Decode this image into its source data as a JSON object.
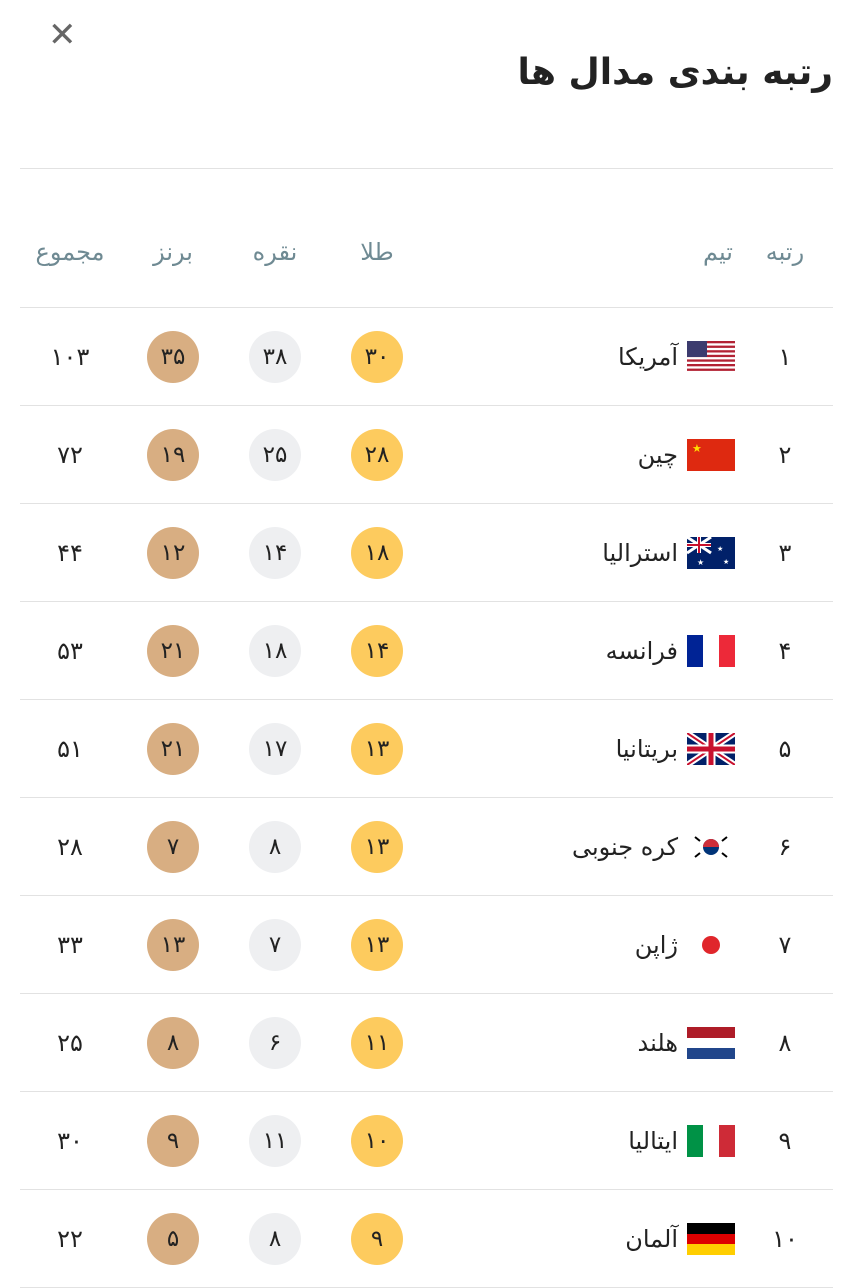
{
  "header": {
    "title": "رتبه بندی مدال ها",
    "close_icon": "close-icon"
  },
  "columns": {
    "rank": "رتبه",
    "team": "تیم",
    "gold": "طلا",
    "silver": "نقره",
    "bronze": "برنز",
    "total": "مجموع"
  },
  "colors": {
    "gold": "#fdcb5e",
    "silver": "#eeeff1",
    "bronze": "#d8ae82",
    "header_text": "#6f8a93"
  },
  "rows": [
    {
      "rank": "۱",
      "team": "آمریکا",
      "flag": "us",
      "gold": "۳۰",
      "silver": "۳۸",
      "bronze": "۳۵",
      "total": "۱۰۳"
    },
    {
      "rank": "۲",
      "team": "چین",
      "flag": "cn",
      "gold": "۲۸",
      "silver": "۲۵",
      "bronze": "۱۹",
      "total": "۷۲"
    },
    {
      "rank": "۳",
      "team": "استرالیا",
      "flag": "au",
      "gold": "۱۸",
      "silver": "۱۴",
      "bronze": "۱۲",
      "total": "۴۴"
    },
    {
      "rank": "۴",
      "team": "فرانسه",
      "flag": "fr",
      "gold": "۱۴",
      "silver": "۱۸",
      "bronze": "۲۱",
      "total": "۵۳"
    },
    {
      "rank": "۵",
      "team": "بریتانیا",
      "flag": "gb",
      "gold": "۱۳",
      "silver": "۱۷",
      "bronze": "۲۱",
      "total": "۵۱"
    },
    {
      "rank": "۶",
      "team": "کره جنوبی",
      "flag": "kr",
      "gold": "۱۳",
      "silver": "۸",
      "bronze": "۷",
      "total": "۲۸"
    },
    {
      "rank": "۷",
      "team": "ژاپن",
      "flag": "jp",
      "gold": "۱۳",
      "silver": "۷",
      "bronze": "۱۳",
      "total": "۳۳"
    },
    {
      "rank": "۸",
      "team": "هلند",
      "flag": "nl",
      "gold": "۱۱",
      "silver": "۶",
      "bronze": "۸",
      "total": "۲۵"
    },
    {
      "rank": "۹",
      "team": "ایتالیا",
      "flag": "it",
      "gold": "۱۰",
      "silver": "۱۱",
      "bronze": "۹",
      "total": "۳۰"
    },
    {
      "rank": "۱۰",
      "team": "آلمان",
      "flag": "de",
      "gold": "۹",
      "silver": "۸",
      "bronze": "۵",
      "total": "۲۲"
    }
  ]
}
